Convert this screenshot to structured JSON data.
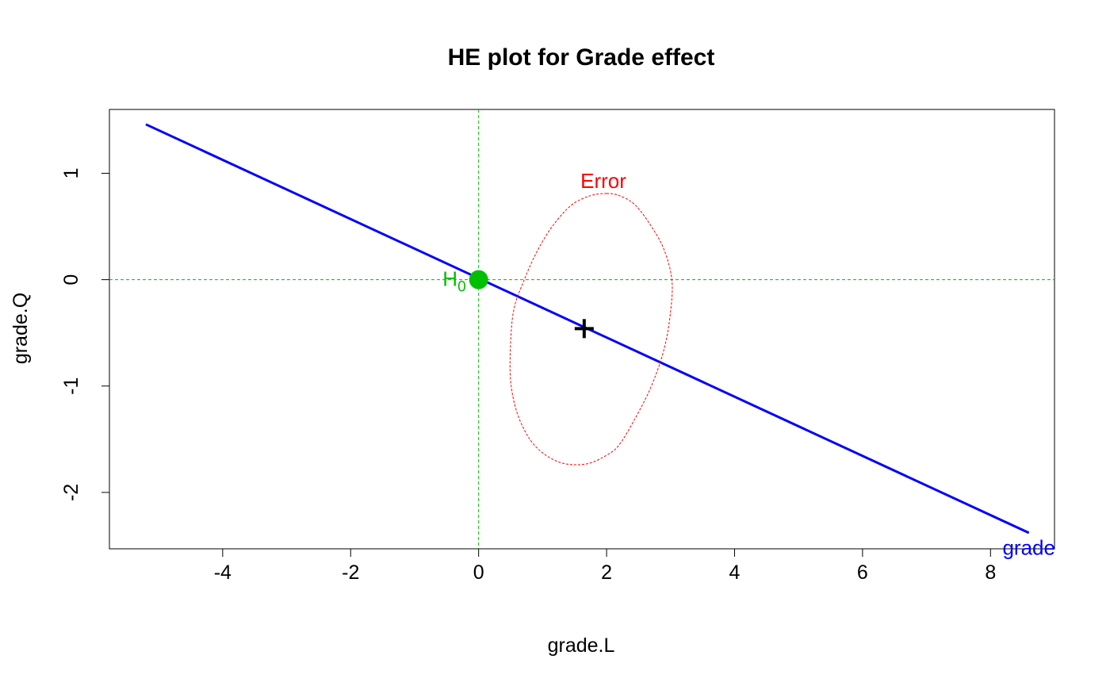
{
  "chart_data": {
    "type": "line",
    "title": "HE plot for Grade effect",
    "xlabel": "grade.L",
    "ylabel": "grade.Q",
    "xlim": [
      -5.77,
      9.0
    ],
    "ylim": [
      -2.53,
      1.6
    ],
    "x_ticks": [
      -4,
      -2,
      0,
      2,
      4,
      6,
      8
    ],
    "y_ticks": [
      -2,
      -1,
      0,
      1
    ],
    "x_tick_labels": [
      "-4",
      "-2",
      "0",
      "2",
      "4",
      "6",
      "8"
    ],
    "y_tick_labels": [
      "-2",
      "-1",
      "0",
      "1"
    ],
    "grid": false,
    "reference_lines": {
      "x": 0,
      "y": 0,
      "color": "#00bf00",
      "style": "dashed"
    },
    "series": [
      {
        "name": "grade",
        "kind": "hypothesis",
        "color": "#0000ff",
        "x": [
          -5.2,
          8.6
        ],
        "y": [
          1.46,
          -2.38
        ]
      },
      {
        "name": "Error",
        "kind": "error-ellipse",
        "color": "#ff0000",
        "style": "dashed",
        "center": [
          1.65,
          -0.46
        ],
        "ellipse": {
          "x": [
            2.0,
            2.2,
            2.45,
            2.7,
            2.9,
            3.02,
            3.0,
            2.9,
            2.7,
            2.45,
            2.2,
            2.0,
            1.7,
            1.35,
            1.05,
            0.8,
            0.6,
            0.5,
            0.5,
            0.55,
            0.7,
            0.9,
            1.15,
            1.45,
            1.75,
            2.0
          ],
          "y": [
            0.81,
            0.79,
            0.7,
            0.5,
            0.28,
            0.0,
            -0.3,
            -0.65,
            -1.0,
            -1.3,
            -1.55,
            -1.65,
            -1.73,
            -1.73,
            -1.65,
            -1.5,
            -1.25,
            -0.95,
            -0.6,
            -0.28,
            -0.02,
            0.25,
            0.5,
            0.7,
            0.79,
            0.81
          ]
        }
      }
    ],
    "markers": [
      {
        "label": "H",
        "subscript": "0",
        "x": 0,
        "y": 0,
        "color": "#00bf00",
        "shape": "filled-circle"
      },
      {
        "x": 1.65,
        "y": -0.46,
        "color": "#000000",
        "shape": "plus"
      }
    ],
    "annotations": [
      {
        "text": "Error",
        "x": 1.95,
        "y": 0.93,
        "color": "#ff0000"
      },
      {
        "text": "grade",
        "x": 8.6,
        "y": -2.52,
        "color": "#0000ff"
      }
    ]
  }
}
